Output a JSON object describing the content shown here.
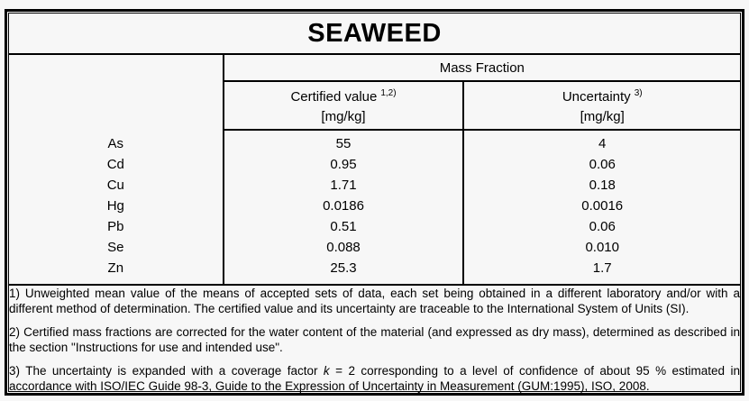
{
  "title": "SEAWEED",
  "table": {
    "group_header": "Mass Fraction",
    "certified_header": {
      "label": "Certified value",
      "footnote_refs": "1,2)",
      "unit": "[mg/kg]"
    },
    "uncertainty_header": {
      "label": "Uncertainty",
      "footnote_refs": "3)",
      "unit": "[mg/kg]"
    },
    "rows": [
      {
        "element": "As",
        "certified_value": "55",
        "uncertainty": "4"
      },
      {
        "element": "Cd",
        "certified_value": "0.95",
        "uncertainty": "0.06"
      },
      {
        "element": "Cu",
        "certified_value": "1.71",
        "uncertainty": "0.18"
      },
      {
        "element": "Hg",
        "certified_value": "0.0186",
        "uncertainty": "0.0016"
      },
      {
        "element": "Pb",
        "certified_value": "0.51",
        "uncertainty": "0.06"
      },
      {
        "element": "Se",
        "certified_value": "0.088",
        "uncertainty": "0.010"
      },
      {
        "element": "Zn",
        "certified_value": "25.3",
        "uncertainty": "1.7"
      }
    ]
  },
  "footnotes": {
    "f1": "1) Unweighted mean value of the means of accepted sets of data, each set being obtained in a different laboratory and/or with a different method of determination. The certified value and its uncertainty are traceable to the International System of Units (SI).",
    "f2": "2) Certified mass fractions are corrected for the water content of the material (and expressed as dry mass), determined as described in the section \"Instructions for use and intended use\".",
    "f3_pre": "3) The uncertainty is expanded with a coverage factor ",
    "f3_italic": "k",
    "f3_post": " = 2 corresponding to a level of confidence of about 95 % estimated in accordance with ISO/IEC Guide 98-3, Guide to the Expression of Uncertainty in Measurement (GUM:1995), ISO, 2008."
  },
  "colors": {
    "background": "#f7f7f7",
    "border": "#000000",
    "text": "#000000"
  }
}
